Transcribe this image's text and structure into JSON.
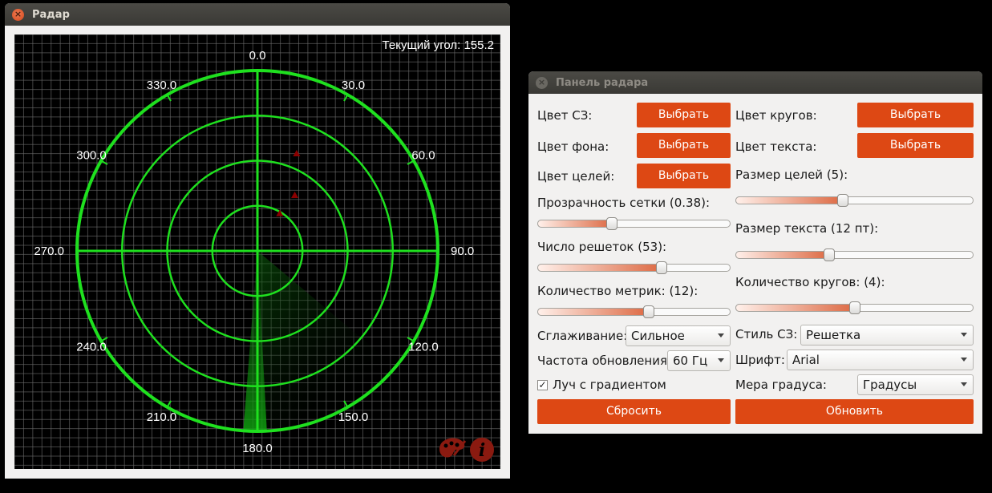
{
  "radar_window": {
    "title": "Радар",
    "close_glyph": "×",
    "current_angle_label": "Текущий угол: 155.2",
    "angle_labels": [
      "0.0",
      "30.0",
      "60.0",
      "90.0",
      "120.0",
      "150.0",
      "180.0",
      "210.0",
      "240.0",
      "270.0",
      "300.0",
      "330.0"
    ],
    "ring_count": 4,
    "grid_lines": 53,
    "grid_opacity": 0.38,
    "sweep_angle": 155.2,
    "targets_bearing_range": [
      {
        "bearing": 22,
        "range": 0.58
      },
      {
        "bearing": 34,
        "range": 0.37
      },
      {
        "bearing": 31,
        "range": 0.24
      }
    ],
    "icons": [
      "palette-icon",
      "info-icon"
    ],
    "colors": {
      "ring": "#1fe01f",
      "grid": "#6a6a6a",
      "background": "#000000",
      "target": "#8b0000",
      "text": "#ffffff"
    }
  },
  "panel_window": {
    "title": "Панель радара",
    "close_glyph": "×",
    "color_sz_label": "Цвет СЗ:",
    "color_bg_label": "Цвет фона:",
    "color_targets_label": "Цвет целей:",
    "color_circles_label": "Цвет кругов:",
    "color_text_label": "Цвет текста:",
    "choose_label": "Выбрать",
    "target_size_label": "Размер целей (5):",
    "target_size_value": 0.45,
    "grid_transparency_label": "Прозрачность сетки (0.38):",
    "grid_transparency_value": 0.38,
    "text_size_label": "Размер текста (12 пт):",
    "text_size_value": 0.39,
    "grid_count_label": "Число решеток (53):",
    "grid_count_value": 0.65,
    "circle_count_label": "Количество кругов: (4):",
    "circle_count_value": 0.5,
    "metric_count_label": "Количество метрик: (12):",
    "metric_count_value": 0.58,
    "smoothing_label": "Сглаживание:",
    "smoothing_value": "Сильное",
    "sz_style_label": "Стиль СЗ:",
    "sz_style_value": "Решетка",
    "refresh_rate_label": "Частота обновления:",
    "refresh_rate_value": "60 Гц",
    "font_label": "Шрифт:",
    "font_value": "Arial",
    "gradient_beam_label": "Луч с градиентом",
    "gradient_beam_checked": true,
    "check_glyph": "✓",
    "degree_measure_label": "Мера градуса:",
    "degree_measure_value": "Градусы",
    "reset_label": "Сбросить",
    "update_label": "Обновить",
    "accent_color": "#dd4814"
  }
}
